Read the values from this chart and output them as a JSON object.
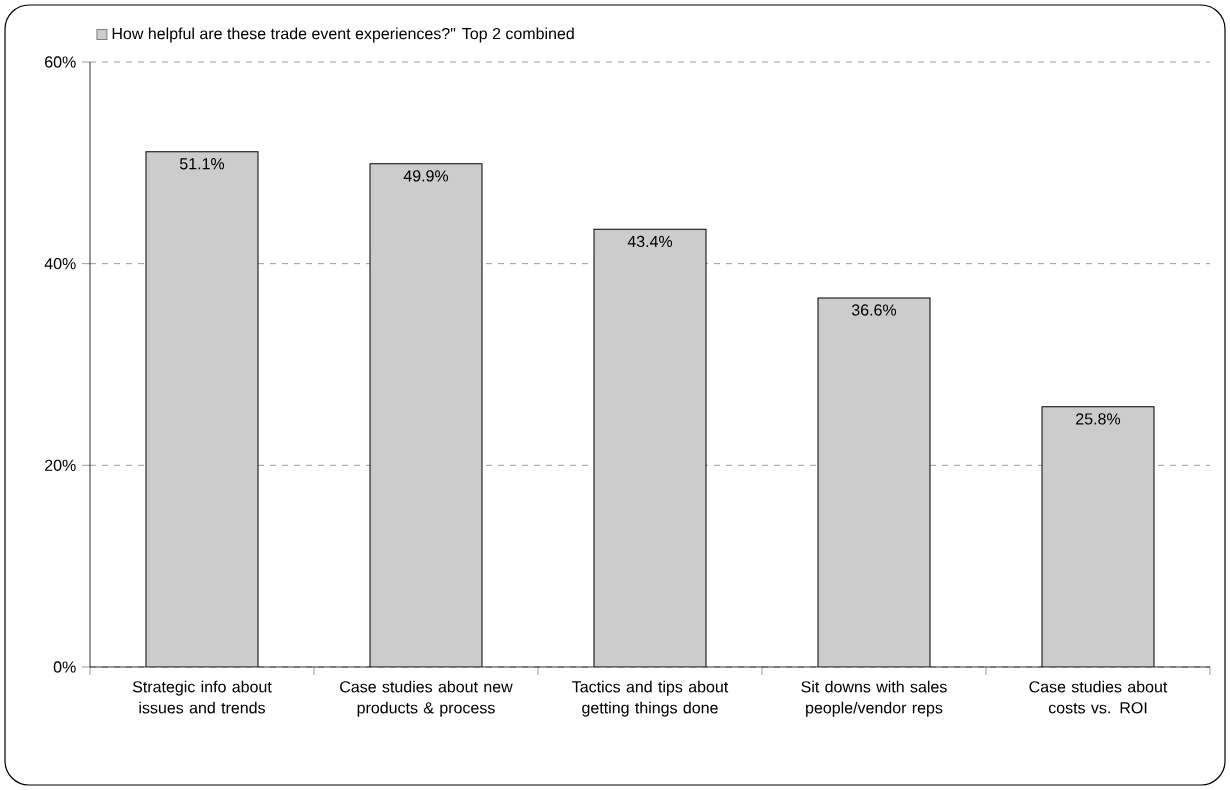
{
  "chart_data": {
    "type": "bar",
    "categories": [
      "Strategic info about issues and trends",
      "Case studies about new products & process",
      "Tactics and tips about getting things done",
      "Sit downs with sales people/vendor reps",
      "Case studies about costs vs. ROI"
    ],
    "series": [
      {
        "name": "How helpful are these trade event experiences?\" Top 2 combined",
        "color": "#cccccc",
        "values": [
          51.1,
          49.9,
          43.4,
          36.6,
          25.8
        ],
        "value_labels": [
          "51.1%",
          "49.9%",
          "43.4%",
          "36.6%",
          "25.8%"
        ]
      }
    ],
    "ylim": [
      0,
      60
    ],
    "yticks": [
      {
        "value": 0,
        "label": "0%"
      },
      {
        "value": 20,
        "label": "20%"
      },
      {
        "value": 40,
        "label": "40%"
      },
      {
        "value": 60,
        "label": "60%"
      }
    ],
    "grid": "y",
    "legend": "top left"
  }
}
